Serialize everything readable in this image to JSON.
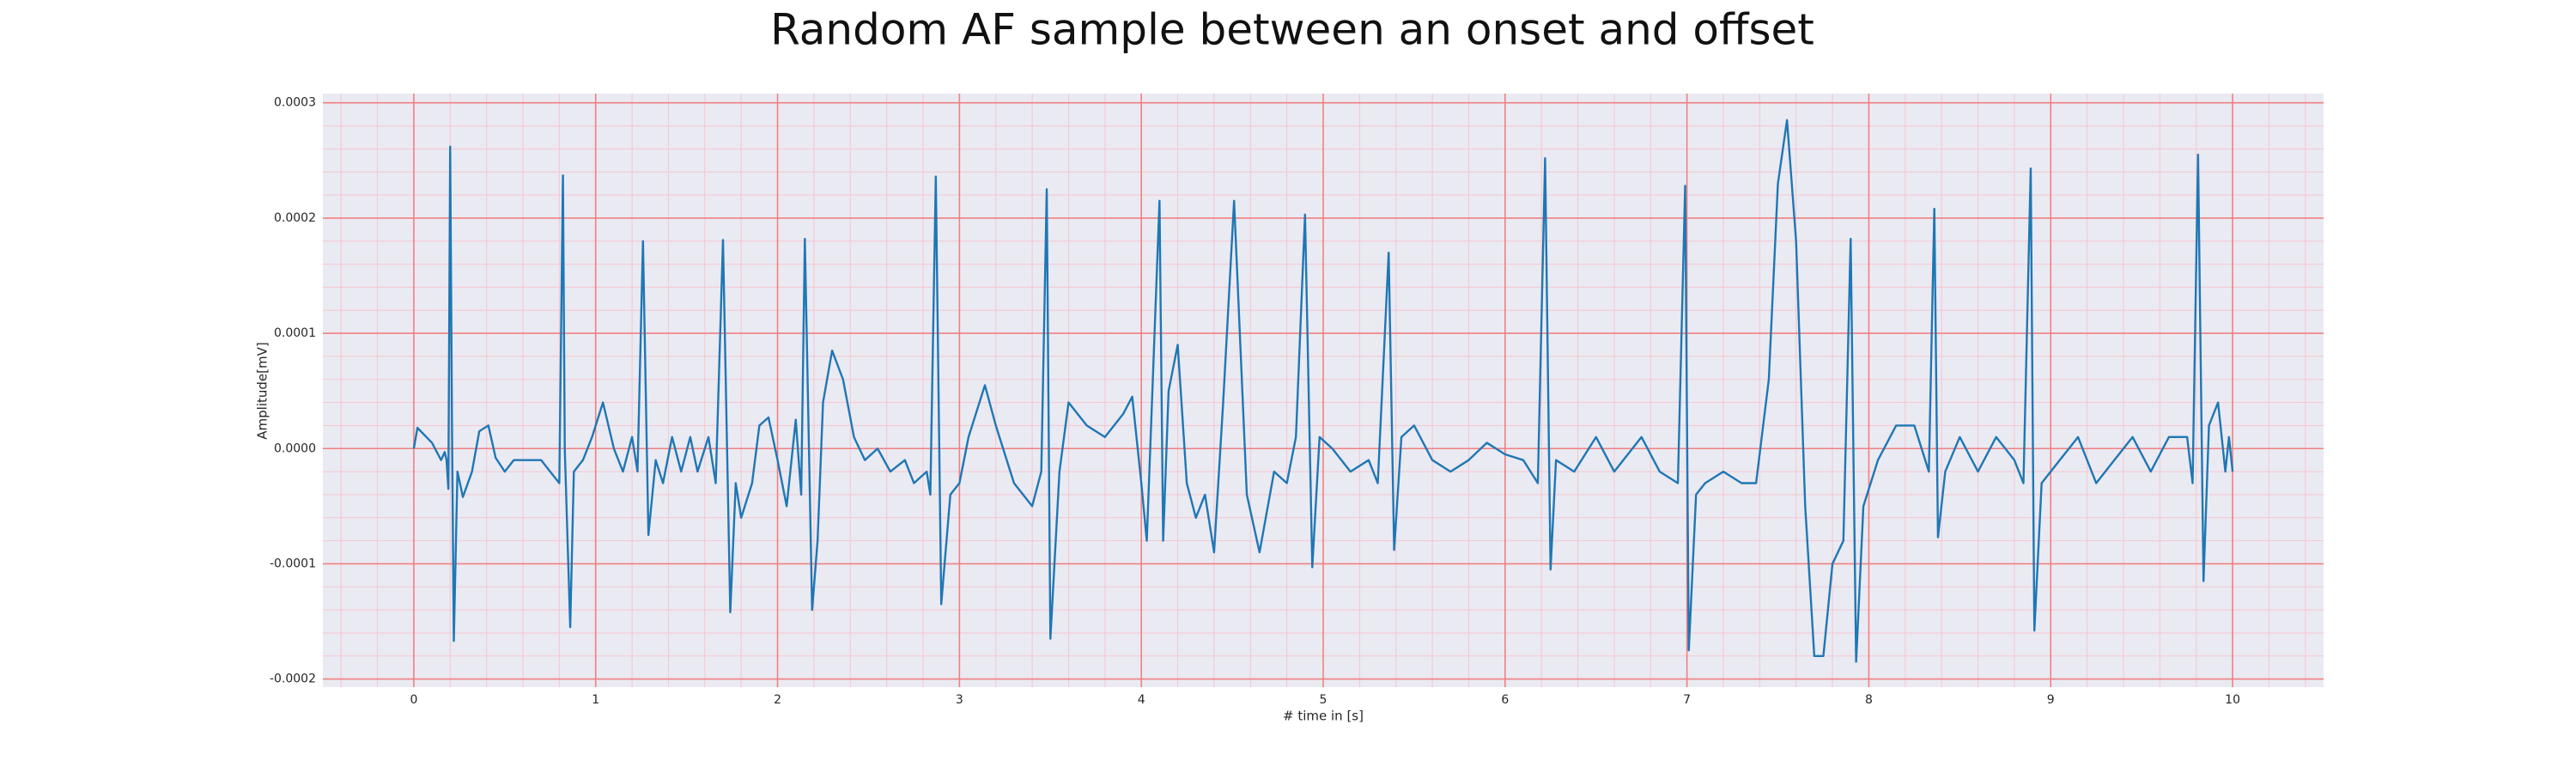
{
  "chart_data": {
    "type": "line",
    "title": "Random AF sample between an onset and offset",
    "xlabel": "# time in [s]",
    "ylabel": "Amplitude[mV]",
    "color": "#1f77b4",
    "grid": true,
    "grid_color": "#f08080",
    "minor_grid": true,
    "minor_grid_color": "#f5c6d0",
    "background": "#eaeaf2",
    "xlim": [
      -0.5,
      10.5
    ],
    "ylim": [
      -0.000207,
      0.000308
    ],
    "xticks": [
      0,
      1,
      2,
      3,
      4,
      5,
      6,
      7,
      8,
      9,
      10
    ],
    "yticks": [
      {
        "value": -0.0002,
        "label": "-0.0002"
      },
      {
        "value": -0.0001,
        "label": "-0.0001"
      },
      {
        "value": 0,
        "label": "0.0000"
      },
      {
        "value": 0.0001,
        "label": "0.0001"
      },
      {
        "value": 0.0002,
        "label": "0.0002"
      },
      {
        "value": 0.0003,
        "label": "0.0003"
      }
    ],
    "x": [
      0,
      0.02,
      0.1,
      0.15,
      0.17,
      0.18,
      0.19,
      0.2,
      0.21,
      0.22,
      0.24,
      0.27,
      0.32,
      0.36,
      0.41,
      0.45,
      0.5,
      0.55,
      0.6,
      0.65,
      0.7,
      0.75,
      0.8,
      0.82,
      0.83,
      0.86,
      0.88,
      0.93,
      0.98,
      1.04,
      1.1,
      1.15,
      1.2,
      1.23,
      1.26,
      1.29,
      1.33,
      1.37,
      1.42,
      1.47,
      1.52,
      1.56,
      1.62,
      1.66,
      1.7,
      1.74,
      1.77,
      1.8,
      1.86,
      1.9,
      1.95,
      2.0,
      2.05,
      2.1,
      2.13,
      2.15,
      2.19,
      2.22,
      2.25,
      2.3,
      2.36,
      2.42,
      2.48,
      2.55,
      2.62,
      2.7,
      2.75,
      2.82,
      2.84,
      2.87,
      2.9,
      2.95,
      3.0,
      3.05,
      3.14,
      3.2,
      3.3,
      3.4,
      3.45,
      3.48,
      3.5,
      3.55,
      3.6,
      3.7,
      3.8,
      3.9,
      3.95,
      4.0,
      4.03,
      4.1,
      4.12,
      4.15,
      4.2,
      4.25,
      4.3,
      4.35,
      4.4,
      4.45,
      4.51,
      4.58,
      4.65,
      4.73,
      4.8,
      4.85,
      4.9,
      4.94,
      4.98,
      5.05,
      5.15,
      5.25,
      5.3,
      5.36,
      5.39,
      5.43,
      5.5,
      5.6,
      5.7,
      5.8,
      5.9,
      6.0,
      6.1,
      6.18,
      6.22,
      6.25,
      6.28,
      6.38,
      6.5,
      6.6,
      6.75,
      6.85,
      6.95,
      6.99,
      7.01,
      7.05,
      7.1,
      7.2,
      7.3,
      7.38,
      7.45,
      7.5,
      7.55,
      7.6,
      7.65,
      7.7,
      7.75,
      7.8,
      7.86,
      7.9,
      7.93,
      7.97,
      8.05,
      8.15,
      8.25,
      8.33,
      8.36,
      8.38,
      8.42,
      8.5,
      8.6,
      8.7,
      8.8,
      8.85,
      8.89,
      8.91,
      8.95,
      9.05,
      9.15,
      9.25,
      9.35,
      9.45,
      9.55,
      9.65,
      9.75,
      9.78,
      9.81,
      9.84,
      9.87,
      9.92,
      9.96,
      9.98,
      10.0
    ],
    "values": [
      0,
      1.8e-05,
      5e-06,
      -1e-05,
      -3e-06,
      -1e-05,
      -3.5e-05,
      0.000262,
      2e-05,
      -0.000167,
      -2e-05,
      -4.2e-05,
      -2e-05,
      1.5e-05,
      2e-05,
      -8e-06,
      -2e-05,
      -1e-05,
      -1e-05,
      -1e-05,
      -1e-05,
      -2e-05,
      -3e-05,
      0.000237,
      0,
      -0.000155,
      -2e-05,
      -1e-05,
      1e-05,
      4e-05,
      0,
      -2e-05,
      1e-05,
      -2e-05,
      0.00018,
      -7.5e-05,
      -1e-05,
      -3e-05,
      1e-05,
      -2e-05,
      1e-05,
      -2e-05,
      1e-05,
      -3e-05,
      0.000181,
      -0.000142,
      -3e-05,
      -6e-05,
      -3e-05,
      2e-05,
      2.7e-05,
      -1e-05,
      -5e-05,
      2.5e-05,
      -4e-05,
      0.000182,
      -0.00014,
      -8e-05,
      4e-05,
      8.5e-05,
      6e-05,
      1e-05,
      -1e-05,
      0,
      -2e-05,
      -1e-05,
      -3e-05,
      -2e-05,
      -4e-05,
      0.000236,
      -0.000135,
      -4e-05,
      -3e-05,
      1e-05,
      5.5e-05,
      2e-05,
      -3e-05,
      -5e-05,
      -2e-05,
      0.000225,
      -0.000165,
      -2e-05,
      4e-05,
      2e-05,
      1e-05,
      3e-05,
      4.5e-05,
      -3e-05,
      -8e-05,
      0.000215,
      -8e-05,
      5e-05,
      9e-05,
      -3e-05,
      -6e-05,
      -4e-05,
      -9e-05,
      4e-05,
      0.000215,
      -4e-05,
      -9e-05,
      -2e-05,
      -3e-05,
      1e-05,
      0.000203,
      -0.000103,
      1e-05,
      0,
      -2e-05,
      -1e-05,
      -3e-05,
      0.00017,
      -8.8e-05,
      1e-05,
      2e-05,
      -1e-05,
      -2e-05,
      -1e-05,
      5e-06,
      -5e-06,
      -1e-05,
      -3e-05,
      0.000252,
      -0.000105,
      -1e-05,
      -2e-05,
      1e-05,
      -2e-05,
      1e-05,
      -2e-05,
      -3e-05,
      0.000228,
      -0.000175,
      -4e-05,
      -3e-05,
      -2e-05,
      -3e-05,
      -3e-05,
      6e-05,
      0.00023,
      0.000285,
      0.00018,
      -5e-05,
      -0.00018,
      -0.00018,
      -0.0001,
      -8e-05,
      0.000182,
      -0.000185,
      -5e-05,
      -1e-05,
      2e-05,
      2e-05,
      -2e-05,
      0.000208,
      -7.7e-05,
      -2e-05,
      1e-05,
      -2e-05,
      1e-05,
      -1e-05,
      -3e-05,
      0.000243,
      -0.000158,
      -3e-05,
      -1e-05,
      1e-05,
      -3e-05,
      -1e-05,
      1e-05,
      -2e-05,
      1e-05,
      1e-05,
      -3e-05,
      0.000255,
      -0.000115,
      2e-05,
      4e-05,
      -2e-05,
      1e-05,
      -2e-05
    ]
  }
}
